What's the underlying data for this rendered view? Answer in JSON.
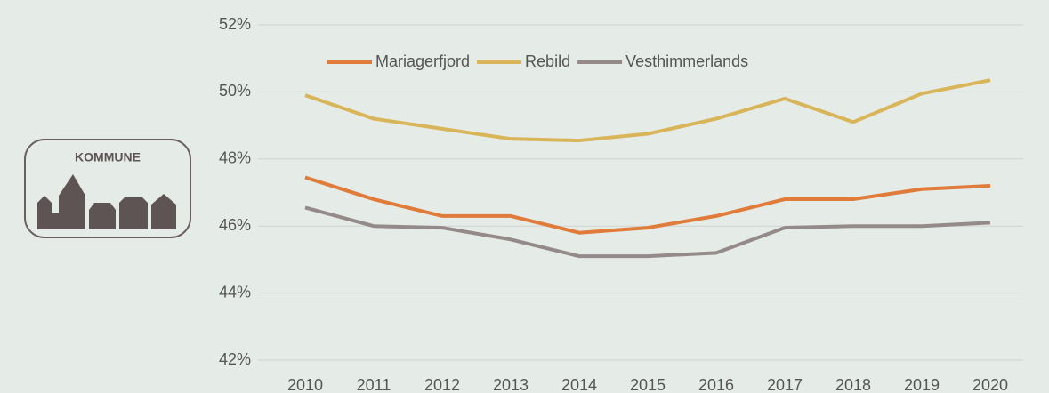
{
  "logo": {
    "label": "KOMMUNE"
  },
  "chart_data": {
    "type": "line",
    "x": [
      "2010",
      "2011",
      "2012",
      "2013",
      "2014",
      "2015",
      "2016",
      "2017",
      "2018",
      "2019",
      "2020"
    ],
    "series": [
      {
        "name": "Mariagerfjord",
        "color": "#e07b39",
        "values": [
          47.45,
          46.8,
          46.3,
          46.3,
          45.8,
          45.95,
          46.3,
          46.8,
          46.8,
          47.1,
          47.2
        ]
      },
      {
        "name": "Rebild",
        "color": "#d9b55a",
        "values": [
          49.9,
          49.2,
          48.9,
          48.6,
          48.55,
          48.75,
          49.2,
          49.8,
          49.1,
          49.95,
          50.35
        ]
      },
      {
        "name": "Vesthimmerlands",
        "color": "#948a8a",
        "values": [
          46.55,
          46.0,
          45.95,
          45.6,
          45.1,
          45.1,
          45.2,
          45.95,
          46.0,
          46.0,
          46.1
        ]
      }
    ],
    "ylim": [
      42,
      52
    ],
    "yticks": [
      {
        "value": 42,
        "label": "42%"
      },
      {
        "value": 44,
        "label": "44%"
      },
      {
        "value": 46,
        "label": "46%"
      },
      {
        "value": 48,
        "label": "48%"
      },
      {
        "value": 50,
        "label": "50%"
      },
      {
        "value": 52,
        "label": "52%"
      }
    ],
    "grid": true,
    "legend": "top"
  }
}
